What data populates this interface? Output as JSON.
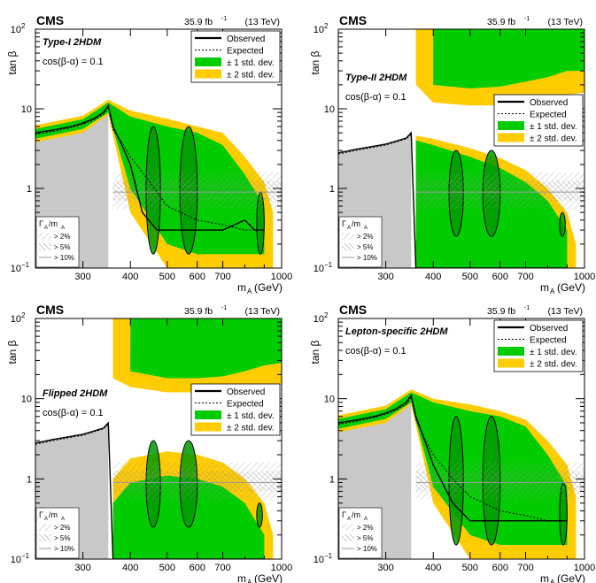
{
  "figure": {
    "common": {
      "experiment": "CMS",
      "lumi": "35.9 fb",
      "lumi_exp": "-1",
      "energy": "(13 TeV)",
      "x_label": "m",
      "x_sub": "A",
      "x_unit": "(GeV)",
      "y_label": "tan β",
      "x_ticks": [
        "300",
        "400",
        "500",
        "600",
        "700",
        "1000"
      ],
      "y_ticks": [
        "10",
        "1",
        "10"
      ],
      "y_top_exp": "2",
      "y_bottom_exp": "−1",
      "legend": {
        "observed": "Observed",
        "expected": "Expected",
        "band1": "± 1 std. dev.",
        "band2": "± 2 std. dev."
      },
      "width_legend": {
        "title_main": "Γ",
        "title_sub1": "A",
        "title_mid": "/m",
        "title_sub2": "A",
        "entries": [
          "> 2%",
          "> 5%",
          "> 10%"
        ]
      },
      "colors": {
        "band1": "#00cc00",
        "band2": "#ffcc00",
        "excluded_dark": "#009900",
        "gray_region": "#c8c8c8",
        "frame": "#000000"
      }
    },
    "panels": [
      {
        "model": "Type-I 2HDM",
        "cos_label": "cos(β-α) = 0.1"
      },
      {
        "model": "Type-II 2HDM",
        "cos_label": "cos(β-α) = 0.1"
      },
      {
        "model": "Flipped 2HDM",
        "cos_label": "cos(β-α) = 0.1"
      },
      {
        "model": "Lepton-specific 2HDM",
        "cos_label": "cos(β-α) = 0.1"
      }
    ]
  },
  "chart_data": [
    {
      "type": "area",
      "title": "Type-I 2HDM",
      "x_scale": "log",
      "y_scale": "log",
      "xlim": [
        225,
        1000
      ],
      "ylim": [
        0.1,
        100
      ],
      "x_ticks": [
        300,
        400,
        500,
        600,
        700,
        1000
      ],
      "y_ticks": [
        0.1,
        1,
        10,
        100
      ],
      "legend_position": "top-right",
      "series": [
        {
          "name": "Observed",
          "x": [
            225,
            250,
            280,
            300,
            320,
            340,
            350,
            360,
            380,
            400,
            430,
            470,
            500,
            560,
            600,
            660,
            700,
            800,
            850,
            900
          ],
          "y": [
            5.0,
            5.4,
            6.0,
            6.6,
            7.5,
            9.0,
            11.0,
            6.0,
            3.5,
            2.0,
            0.5,
            0.3,
            0.3,
            0.3,
            0.3,
            0.3,
            0.3,
            0.4,
            0.3,
            0.3
          ]
        },
        {
          "name": "Expected",
          "x": [
            225,
            250,
            280,
            300,
            320,
            340,
            350,
            360,
            380,
            400,
            450,
            500,
            600,
            700,
            800,
            900
          ],
          "y": [
            4.8,
            5.2,
            5.8,
            6.4,
            7.2,
            8.5,
            10.5,
            5.5,
            3.8,
            2.5,
            1.2,
            0.6,
            0.4,
            0.35,
            0.3,
            0.3
          ]
        },
        {
          "name": "± 1 std. dev.",
          "x": [
            225,
            300,
            350,
            400,
            500,
            600,
            700,
            800,
            900
          ],
          "y_low": [
            4.2,
            5.6,
            9.0,
            1.0,
            0.2,
            0.15,
            0.15,
            0.15,
            0.15
          ],
          "y_high": [
            5.6,
            7.4,
            12.0,
            8.0,
            6.0,
            5.0,
            3.5,
            1.5,
            0.6
          ]
        },
        {
          "name": "± 2 std. dev.",
          "x": [
            225,
            300,
            350,
            400,
            500,
            600,
            700,
            800,
            900,
            950
          ],
          "y_low": [
            3.8,
            5.0,
            8.5,
            0.5,
            0.1,
            0.1,
            0.1,
            0.1,
            0.1,
            0.1
          ],
          "y_high": [
            6.2,
            8.2,
            13.0,
            9.5,
            7.5,
            6.0,
            5.0,
            2.5,
            1.2,
            0.5
          ]
        }
      ]
    },
    {
      "type": "area",
      "title": "Type-II 2HDM",
      "x_scale": "log",
      "y_scale": "log",
      "xlim": [
        225,
        1000
      ],
      "ylim": [
        0.1,
        100
      ],
      "x_ticks": [
        300,
        400,
        500,
        600,
        700,
        1000
      ],
      "y_ticks": [
        0.1,
        1,
        10,
        100
      ],
      "legend_position": "top-right",
      "series": [
        {
          "name": "Observed",
          "x": [
            225,
            250,
            300,
            340,
            350,
            360,
            400,
            450,
            500,
            600,
            700,
            800,
            900
          ],
          "y": [
            2.8,
            3.1,
            3.6,
            4.3,
            5.0,
            0.1,
            0.1,
            0.1,
            0.1,
            0.1,
            0.1,
            0.1,
            0.1
          ]
        },
        {
          "name": "Expected",
          "x": [
            225,
            250,
            300,
            340,
            350,
            360,
            400,
            500,
            600,
            700,
            800,
            900
          ],
          "y": [
            2.7,
            3.0,
            3.5,
            4.2,
            4.8,
            0.1,
            0.1,
            0.1,
            0.1,
            0.1,
            0.1,
            0.1
          ]
        },
        {
          "name": "± 1 std. dev.",
          "x": [
            360,
            400,
            500,
            600,
            700,
            800,
            900
          ],
          "y_low": [
            0.1,
            0.1,
            0.1,
            0.1,
            0.1,
            0.1,
            0.1
          ],
          "y_high": [
            4.0,
            3.5,
            2.5,
            1.8,
            1.2,
            0.7,
            0.3
          ]
        },
        {
          "name": "± 2 std. dev.",
          "x": [
            360,
            400,
            500,
            600,
            700,
            800,
            900,
            950
          ],
          "y_low": [
            0.1,
            0.1,
            0.1,
            0.1,
            0.1,
            0.1,
            0.1,
            0.1
          ],
          "y_high": [
            4.6,
            4.2,
            3.2,
            2.4,
            1.7,
            1.0,
            0.5,
            0.2
          ]
        }
      ]
    },
    {
      "type": "area",
      "title": "Flipped 2HDM",
      "x_scale": "log",
      "y_scale": "log",
      "xlim": [
        225,
        1000
      ],
      "ylim": [
        0.1,
        100
      ],
      "x_ticks": [
        300,
        400,
        500,
        600,
        700,
        1000
      ],
      "y_ticks": [
        0.1,
        1,
        10,
        100
      ],
      "legend_position": "middle-right",
      "series": [
        {
          "name": "Observed",
          "x": [
            225,
            250,
            300,
            340,
            350,
            360,
            400,
            500,
            600,
            700,
            800,
            900
          ],
          "y": [
            2.8,
            3.1,
            3.6,
            4.3,
            5.0,
            0.1,
            0.1,
            0.1,
            0.1,
            0.1,
            0.1,
            0.1
          ]
        },
        {
          "name": "Expected",
          "x": [
            225,
            250,
            300,
            340,
            350,
            360,
            400,
            500,
            600,
            700,
            800,
            900
          ],
          "y": [
            2.7,
            3.0,
            3.5,
            4.2,
            4.8,
            0.1,
            0.1,
            0.1,
            0.1,
            0.1,
            0.1,
            0.1
          ]
        },
        {
          "name": "± 1 std. dev.",
          "x": [
            360,
            400,
            500,
            600,
            700,
            800,
            900
          ],
          "y_low": [
            0.1,
            0.1,
            0.1,
            0.1,
            0.1,
            0.1,
            0.1
          ],
          "y_high": [
            0.5,
            0.9,
            1.1,
            1.0,
            0.8,
            0.5,
            0.2
          ]
        },
        {
          "name": "± 2 std. dev.",
          "x": [
            360,
            400,
            500,
            600,
            700,
            800,
            900,
            950
          ],
          "y_low": [
            0.1,
            0.1,
            0.1,
            0.1,
            0.1,
            0.1,
            0.1,
            0.1
          ],
          "y_high": [
            1.0,
            1.8,
            2.2,
            2.0,
            1.6,
            1.0,
            0.5,
            0.2
          ]
        }
      ]
    },
    {
      "type": "area",
      "title": "Lepton-specific 2HDM",
      "x_scale": "log",
      "y_scale": "log",
      "xlim": [
        225,
        1000
      ],
      "ylim": [
        0.1,
        100
      ],
      "x_ticks": [
        300,
        400,
        500,
        600,
        700,
        1000
      ],
      "y_ticks": [
        0.1,
        1,
        10,
        100
      ],
      "legend_position": "top-right",
      "series": [
        {
          "name": "Observed",
          "x": [
            225,
            250,
            280,
            300,
            320,
            340,
            350,
            360,
            380,
            400,
            450,
            500,
            600,
            700,
            800,
            900
          ],
          "y": [
            5.0,
            5.4,
            6.0,
            6.6,
            7.5,
            9.0,
            11.0,
            6.0,
            3.0,
            1.5,
            0.5,
            0.3,
            0.3,
            0.3,
            0.3,
            0.3
          ]
        },
        {
          "name": "Expected",
          "x": [
            225,
            250,
            280,
            300,
            320,
            340,
            350,
            360,
            380,
            400,
            450,
            500,
            600,
            700,
            800,
            900
          ],
          "y": [
            4.8,
            5.2,
            5.8,
            6.4,
            7.2,
            8.5,
            10.5,
            5.5,
            3.2,
            2.0,
            1.0,
            0.6,
            0.4,
            0.35,
            0.3,
            0.3
          ]
        },
        {
          "name": "± 1 std. dev.",
          "x": [
            225,
            300,
            350,
            400,
            500,
            600,
            700,
            800,
            900
          ],
          "y_low": [
            4.2,
            5.6,
            9.0,
            0.8,
            0.2,
            0.15,
            0.15,
            0.15,
            0.15
          ],
          "y_high": [
            5.6,
            7.4,
            12.0,
            9.0,
            7.0,
            6.0,
            4.5,
            2.0,
            0.8
          ]
        },
        {
          "name": "± 2 std. dev.",
          "x": [
            225,
            300,
            350,
            400,
            500,
            600,
            700,
            800,
            900,
            950
          ],
          "y_low": [
            3.8,
            5.0,
            8.5,
            0.5,
            0.1,
            0.1,
            0.1,
            0.1,
            0.1,
            0.1
          ],
          "y_high": [
            6.2,
            8.2,
            13.0,
            10.0,
            8.5,
            7.0,
            5.5,
            3.0,
            1.5,
            0.6
          ]
        }
      ]
    }
  ]
}
